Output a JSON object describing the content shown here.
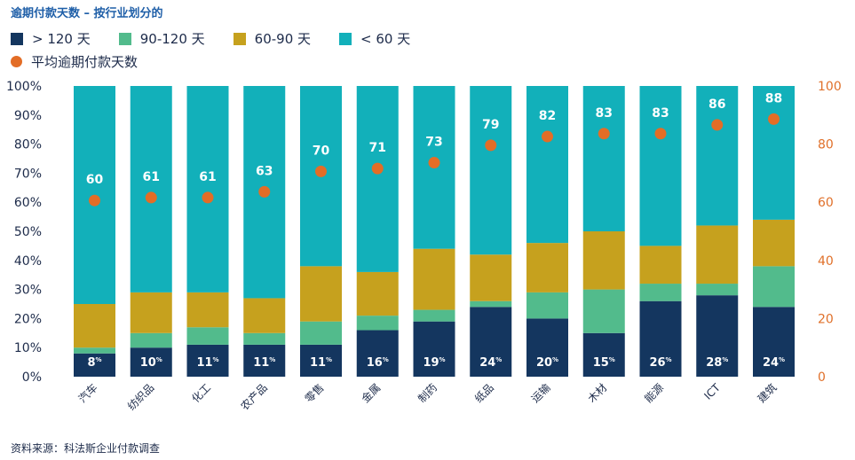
{
  "title": "逾期付款天数 – 按行业划分的",
  "legend": {
    "gt120": "> 120 天",
    "d90_120": "90-120 天",
    "d60_90": "60-90 天",
    "lt60": "< 60 天",
    "avg": "平均逾期付款天数"
  },
  "source": "资料来源：科法斯企业付款调查",
  "colors": {
    "gt120": "#14365f",
    "d90_120": "#52bb8c",
    "d60_90": "#c6a11e",
    "lt60": "#12b0ba",
    "avg": "#e36d26"
  },
  "chart_data": {
    "type": "bar",
    "stacked": true,
    "categories": [
      "汽车",
      "纺织品",
      "化工",
      "农产品",
      "零售",
      "金属",
      "制药",
      "纸品",
      "运输",
      "木材",
      "能源",
      "ICT",
      "建筑"
    ],
    "series": [
      {
        "name": "> 120 天",
        "values": [
          8,
          10,
          11,
          11,
          11,
          16,
          19,
          24,
          20,
          15,
          26,
          28,
          24
        ]
      },
      {
        "name": "90-120 天",
        "values": [
          2,
          5,
          6,
          4,
          8,
          5,
          4,
          2,
          9,
          15,
          6,
          4,
          14
        ]
      },
      {
        "name": "60-90 天",
        "values": [
          15,
          14,
          12,
          12,
          19,
          15,
          21,
          16,
          17,
          20,
          13,
          20,
          16
        ]
      },
      {
        "name": "< 60 天",
        "values": [
          75,
          71,
          71,
          73,
          62,
          64,
          56,
          58,
          54,
          50,
          55,
          48,
          46
        ]
      }
    ],
    "bar_labels": [
      "8%",
      "10%",
      "11%",
      "11%",
      "11%",
      "16%",
      "19%",
      "24%",
      "20%",
      "15%",
      "26%",
      "28%",
      "24%"
    ],
    "avg_days": {
      "name": "平均逾期付款天数",
      "values": [
        60,
        61,
        61,
        63,
        70,
        71,
        73,
        79,
        82,
        83,
        83,
        86,
        88
      ]
    },
    "y_left": {
      "ylim": [
        0,
        100
      ],
      "ticks": [
        "0%",
        "10%",
        "20%",
        "30%",
        "40%",
        "50%",
        "60%",
        "70%",
        "80%",
        "90%",
        "100%"
      ]
    },
    "y_right": {
      "ylim": [
        0,
        100
      ],
      "ticks": [
        "0",
        "20",
        "40",
        "60",
        "80",
        "100"
      ]
    }
  }
}
